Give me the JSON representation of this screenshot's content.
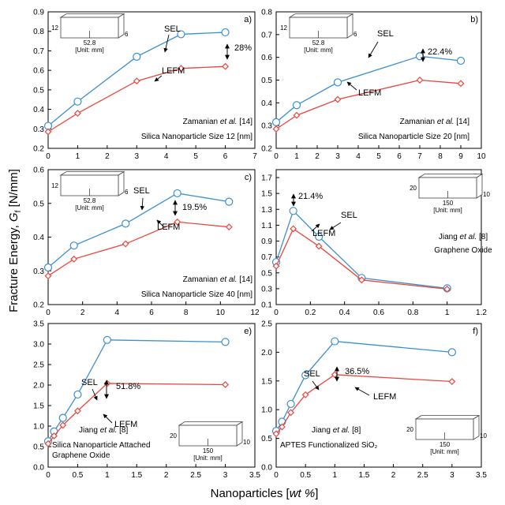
{
  "figure": {
    "ylabel_prefix": "Fracture Energy, ",
    "ylabel_symbol": "G",
    "ylabel_sub": "f",
    "ylabel_unit": " [N/mm]",
    "xlabel_prefix": "Nanoparticles [",
    "xlabel_italic": "wt %",
    "xlabel_suffix": "]"
  },
  "colors": {
    "sel": "#3a8fd0",
    "lefm": "#e8473e"
  },
  "chart_data": [
    {
      "type": "line",
      "panel": "a)",
      "xlim": [
        0,
        7
      ],
      "xticks": [
        0,
        1,
        2,
        3,
        4,
        5,
        6,
        7
      ],
      "ylim": [
        0.2,
        0.9
      ],
      "yticks": [
        0.2,
        0.3,
        0.4,
        0.5,
        0.6,
        0.7,
        0.8,
        0.9
      ],
      "yfmt": 1,
      "xfmt": 0,
      "series": [
        {
          "name": "SEL",
          "marker": "circle",
          "x": [
            0,
            1,
            3,
            4.5,
            6
          ],
          "y": [
            0.315,
            0.44,
            0.67,
            0.785,
            0.795
          ]
        },
        {
          "name": "LEFM",
          "marker": "diamond",
          "x": [
            0,
            1,
            3,
            4.5,
            6
          ],
          "y": [
            0.285,
            0.38,
            0.545,
            0.61,
            0.62
          ]
        }
      ],
      "source_prefix": "Zamanian ",
      "source_italic": "et al.",
      "source_suffix": " [14]",
      "caption_lines": [
        "Silica Nanoparticle Size 12 [nm]"
      ],
      "percent": "28%",
      "schematic": {
        "height": "12",
        "length": "52.8",
        "depth": "6",
        "unit": "[Unit: mm]"
      }
    },
    {
      "type": "line",
      "panel": "b)",
      "xlim": [
        0,
        10
      ],
      "xticks": [
        0,
        1,
        2,
        3,
        4,
        5,
        6,
        7,
        8,
        9,
        10
      ],
      "ylim": [
        0.2,
        0.8
      ],
      "yticks": [
        0.2,
        0.3,
        0.4,
        0.5,
        0.6,
        0.7,
        0.8
      ],
      "yfmt": 1,
      "xfmt": 0,
      "series": [
        {
          "name": "SEL",
          "marker": "circle",
          "x": [
            0,
            1,
            3,
            7,
            9
          ],
          "y": [
            0.315,
            0.39,
            0.49,
            0.605,
            0.585
          ]
        },
        {
          "name": "LEFM",
          "marker": "diamond",
          "x": [
            0,
            1,
            3,
            7,
            9
          ],
          "y": [
            0.285,
            0.345,
            0.415,
            0.5,
            0.485
          ]
        }
      ],
      "source_prefix": "Zamanian ",
      "source_italic": "et al.",
      "source_suffix": " [14]",
      "caption_lines": [
        "Silica Nanoparticle Size 20 [nm]"
      ],
      "percent": "22.4%",
      "schematic": {
        "height": "12",
        "length": "52.8",
        "depth": "6",
        "unit": "[Unit: mm]"
      }
    },
    {
      "type": "line",
      "panel": "c)",
      "xlim": [
        0,
        12
      ],
      "xticks": [
        0,
        2,
        4,
        6,
        8,
        10,
        12
      ],
      "ylim": [
        0.2,
        0.6
      ],
      "yticks": [
        0.2,
        0.3,
        0.4,
        0.5,
        0.6
      ],
      "yfmt": 1,
      "xfmt": 0,
      "series": [
        {
          "name": "SEL",
          "marker": "circle",
          "x": [
            0,
            1.5,
            4.5,
            7.5,
            10.5
          ],
          "y": [
            0.31,
            0.375,
            0.44,
            0.53,
            0.505
          ]
        },
        {
          "name": "LEFM",
          "marker": "diamond",
          "x": [
            0,
            1.5,
            4.5,
            7.5,
            10.5
          ],
          "y": [
            0.285,
            0.335,
            0.38,
            0.445,
            0.43
          ]
        }
      ],
      "source_prefix": "Zamanian ",
      "source_italic": "et al.",
      "source_suffix": " [14]",
      "caption_lines": [
        "Silica Nanoparticle Size 40 [nm]"
      ],
      "percent": "19.5%",
      "schematic": {
        "height": "12",
        "length": "52.8",
        "depth": "6",
        "unit": "[Unit: mm]"
      }
    },
    {
      "type": "line",
      "panel": "d)",
      "xlim": [
        0,
        1.2
      ],
      "xticks": [
        0,
        0.2,
        0.4,
        0.6,
        0.8,
        1,
        1.2
      ],
      "ylim": [
        0.1,
        1.8
      ],
      "yticks": [
        0.1,
        0.3,
        0.5,
        0.7,
        0.9,
        1.1,
        1.3,
        1.5,
        1.7
      ],
      "yfmt": 1,
      "xfmt": 1,
      "series": [
        {
          "name": "SEL",
          "marker": "circle",
          "x": [
            0,
            0.1,
            0.25,
            0.5,
            1
          ],
          "y": [
            0.635,
            1.28,
            0.955,
            0.435,
            0.305
          ]
        },
        {
          "name": "LEFM",
          "marker": "diamond",
          "x": [
            0,
            0.1,
            0.25,
            0.5,
            1
          ],
          "y": [
            0.585,
            1.055,
            0.835,
            0.41,
            0.295
          ]
        }
      ],
      "source_prefix": "Jiang ",
      "source_italic": "et al.",
      "source_suffix": " [8]",
      "caption_lines": [
        "Graphene Oxide"
      ],
      "percent": "21.4%",
      "schematic": {
        "height": "20",
        "length": "150",
        "depth": "10",
        "unit": "[Unit: mm]"
      }
    },
    {
      "type": "line",
      "panel": "e)",
      "xlim": [
        0,
        3.5
      ],
      "xticks": [
        0,
        0.5,
        1,
        1.5,
        2,
        2.5,
        3,
        3.5
      ],
      "ylim": [
        0,
        3.5
      ],
      "yticks": [
        0,
        0.5,
        1,
        1.5,
        2,
        2.5,
        3,
        3.5
      ],
      "yfmt": 1,
      "xfmt": 1,
      "series": [
        {
          "name": "SEL",
          "marker": "circle",
          "x": [
            0,
            0.1,
            0.25,
            0.5,
            1,
            3
          ],
          "y": [
            0.63,
            0.87,
            1.2,
            1.77,
            3.1,
            3.05
          ]
        },
        {
          "name": "LEFM",
          "marker": "diamond",
          "x": [
            0,
            0.1,
            0.25,
            0.5,
            1,
            3
          ],
          "y": [
            0.57,
            0.76,
            1.02,
            1.37,
            2.04,
            2.01
          ]
        }
      ],
      "source_prefix": "Jiang ",
      "source_italic": "et al.",
      "source_suffix": " [8]",
      "caption_lines": [
        "Silica Nanoparticle Attached",
        "Graphene Oxide"
      ],
      "percent": "51.8%",
      "schematic": {
        "height": "20",
        "length": "150",
        "depth": "10",
        "unit": "[Unit: mm]"
      }
    },
    {
      "type": "line",
      "panel": "f)",
      "xlim": [
        0,
        3.5
      ],
      "xticks": [
        0,
        0.5,
        1,
        1.5,
        2,
        2.5,
        3,
        3.5
      ],
      "ylim": [
        0,
        2.5
      ],
      "yticks": [
        0,
        0.5,
        1,
        1.5,
        2,
        2.5
      ],
      "yfmt": 1,
      "xfmt": 1,
      "series": [
        {
          "name": "SEL",
          "marker": "circle",
          "x": [
            0,
            0.1,
            0.25,
            0.5,
            1,
            3
          ],
          "y": [
            0.63,
            0.79,
            1.1,
            1.6,
            2.19,
            2.0
          ]
        },
        {
          "name": "LEFM",
          "marker": "diamond",
          "x": [
            0,
            0.1,
            0.25,
            0.5,
            1,
            3
          ],
          "y": [
            0.58,
            0.7,
            0.95,
            1.26,
            1.61,
            1.49
          ]
        }
      ],
      "source_prefix": "Jiang ",
      "source_italic": "et al.",
      "source_suffix": " [8]",
      "caption_lines": [
        "APTES Functionalized SiO₂"
      ],
      "percent": "36.5%",
      "schematic": {
        "height": "20",
        "length": "150",
        "depth": "10",
        "unit": "[Unit: mm]"
      }
    }
  ]
}
